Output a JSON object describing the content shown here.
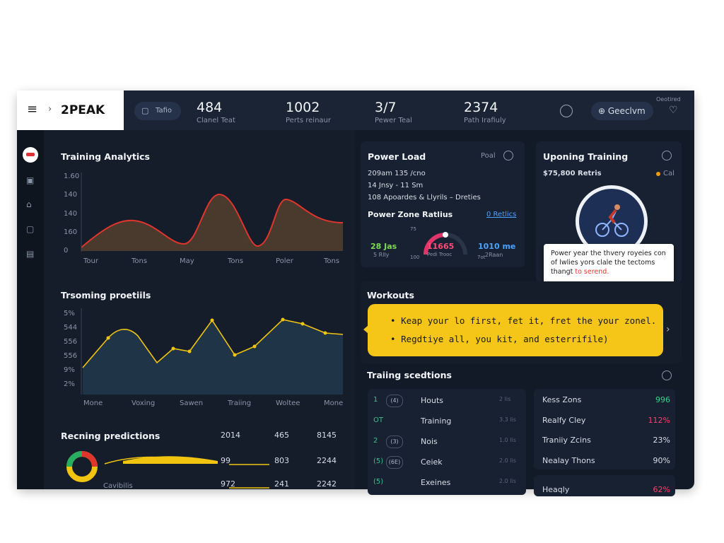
{
  "top_bar": {
    "logo": "2PEAK",
    "button": "Tafio",
    "stats": [
      {
        "value": "484",
        "label": "Clanel Teat"
      },
      {
        "value": "1002",
        "label": "Perts reinaur"
      },
      {
        "value": "3/7",
        "label": "Pewer Teal"
      },
      {
        "value": "2374",
        "label": "Path Irafiuly"
      }
    ],
    "action": "Geeclvm",
    "corner": "Oeotired"
  },
  "training_analytics": {
    "title": "Training Analytics",
    "y_labels": [
      "1.60",
      "140",
      "140",
      "160",
      "0"
    ],
    "x_labels": [
      "Tour",
      "Tons",
      "May",
      "Tons",
      "Poler",
      "Tons"
    ]
  },
  "trending": {
    "title": "Trsoming proetiils",
    "y_labels": [
      "5%",
      "544",
      "556",
      "556",
      "9%",
      "2%"
    ],
    "x_labels": [
      "Mone",
      "Voxing",
      "Sawen",
      "Traiing",
      "Woltee",
      "Mone"
    ]
  },
  "predictions": {
    "title": "Recning predictions",
    "rows": [
      {
        "values": [
          "2014",
          "465",
          "8145"
        ]
      },
      {
        "values": [
          "99",
          "803",
          "2244"
        ]
      },
      {
        "label": "Cavibilis",
        "values": [
          "972",
          "241",
          "2242"
        ]
      }
    ]
  },
  "power_load": {
    "title": "Power Load",
    "corner": "Poal",
    "lines": [
      "209am 135 /cno",
      "14 Jnsy - 11 Sm",
      "108 Apoardes & Llyrils – Dreties"
    ],
    "zone_title": "Power Zone Ratlius",
    "zone_link": "0 Retlics",
    "left": {
      "value": "28 Jas",
      "label": "5 Rlly"
    },
    "center": {
      "value": "11665",
      "label": "Pedi Trooc"
    },
    "right": {
      "value": "1010 me",
      "label": "2Raan"
    },
    "scale": [
      "75",
      "100",
      "7ot"
    ]
  },
  "upcoming": {
    "title": "Uponing Training",
    "price": "$75,800 Retris",
    "status": "Cal",
    "tooltip": "Power year the thvery royeies con of lwlies yors clale the tectoms thangt",
    "tooltip_highlight": "to serend."
  },
  "workouts": {
    "title": "Workouts",
    "bullets": [
      "Keap your lo first, fet it, fret the your zonel.",
      "Regdtiye all, you kit, and esterrifile)"
    ]
  },
  "sessions": {
    "title": "Traiing scedtions",
    "rows": [
      {
        "num": "1",
        "icon": "(4)",
        "name": "Houts",
        "value": "2 lis"
      },
      {
        "num": "OT",
        "icon": "",
        "name": "Training",
        "value": "3.3 lis"
      },
      {
        "num": "2",
        "icon": "(3)",
        "name": "Nois",
        "value": "1.0 lis"
      },
      {
        "num": "(5)",
        "icon": "(6E)",
        "name": "Ceiek",
        "value": "2.0 lis"
      },
      {
        "num": "(5)",
        "icon": "",
        "name": "Exeines",
        "value": "2.0 lis"
      }
    ],
    "zones": [
      {
        "name": "Kess Zons",
        "value": "996",
        "tone": "green"
      },
      {
        "name": "Realfy Cley",
        "value": "112%",
        "tone": "red"
      },
      {
        "name": "Traniiy Zcins",
        "value": "23%",
        "tone": "plain"
      },
      {
        "name": "Nealay Thons",
        "value": "90%",
        "tone": "plain"
      },
      {
        "name": "Heaqly",
        "value": "62%",
        "tone": "red"
      }
    ]
  }
}
